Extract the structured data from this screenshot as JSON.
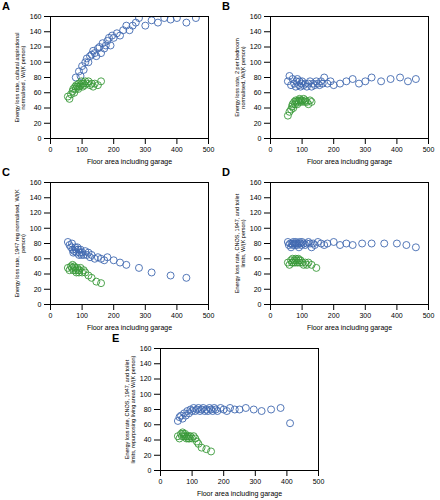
{
  "chart_data": [
    {
      "type": "scatter",
      "title": "A",
      "xlabel": "Floor area including garage",
      "ylabel": "Energy loss rate, cultural aspirational\nnormalised , W/(K person)",
      "xlim": [
        0,
        500
      ],
      "xticks": [
        0,
        100,
        200,
        300,
        400,
        500
      ],
      "ylim": [
        0,
        160
      ],
      "yticks": [
        0,
        20,
        40,
        60,
        80,
        100,
        120,
        140,
        160
      ],
      "grid": false,
      "marker": "circle",
      "series": [
        {
          "color": "#4169b0",
          "x": [
            80,
            90,
            95,
            100,
            105,
            110,
            115,
            120,
            125,
            130,
            135,
            140,
            145,
            150,
            155,
            160,
            165,
            170,
            175,
            180,
            185,
            190,
            195,
            200,
            210,
            220,
            230,
            240,
            250,
            260,
            270,
            280,
            300,
            320,
            340,
            360,
            380,
            400,
            430,
            460
          ],
          "values": [
            80,
            88,
            82,
            95,
            90,
            100,
            105,
            100,
            108,
            110,
            115,
            112,
            108,
            118,
            120,
            112,
            125,
            118,
            122,
            128,
            132,
            122,
            135,
            132,
            138,
            135,
            142,
            148,
            142,
            148,
            152,
            158,
            148,
            155,
            152,
            158,
            156,
            158,
            152,
            158
          ]
        },
        {
          "color": "#3a9a3a",
          "x": [
            55,
            60,
            65,
            70,
            72,
            75,
            78,
            80,
            82,
            85,
            88,
            90,
            92,
            95,
            98,
            100,
            102,
            105,
            108,
            110,
            115,
            120,
            125,
            130,
            135,
            140,
            150,
            160
          ],
          "values": [
            55,
            52,
            58,
            62,
            65,
            60,
            68,
            65,
            70,
            68,
            65,
            72,
            68,
            70,
            75,
            72,
            68,
            72,
            70,
            75,
            72,
            75,
            70,
            72,
            68,
            72,
            70,
            75
          ]
        }
      ]
    },
    {
      "type": "scatter",
      "title": "B",
      "xlabel": "Floor area including garage",
      "ylabel": "Energy loss rate, 2 per bedroom\nnormalised, W/(K person)",
      "xlim": [
        0,
        500
      ],
      "xticks": [
        0,
        100,
        200,
        300,
        400,
        500
      ],
      "ylim": [
        0,
        160
      ],
      "yticks": [
        0,
        20,
        40,
        60,
        80,
        100,
        120,
        140,
        160
      ],
      "grid": false,
      "marker": "circle",
      "series": [
        {
          "color": "#4169b0",
          "x": [
            55,
            60,
            65,
            70,
            75,
            80,
            82,
            85,
            90,
            92,
            95,
            98,
            100,
            105,
            110,
            115,
            120,
            125,
            130,
            135,
            140,
            145,
            150,
            155,
            160,
            165,
            170,
            180,
            190,
            200,
            220,
            240,
            260,
            280,
            300,
            320,
            350,
            380,
            410,
            435,
            460
          ],
          "values": [
            75,
            82,
            70,
            78,
            72,
            68,
            75,
            78,
            70,
            75,
            68,
            72,
            75,
            70,
            72,
            68,
            72,
            75,
            68,
            72,
            70,
            75,
            72,
            70,
            75,
            72,
            80,
            72,
            75,
            70,
            72,
            75,
            78,
            72,
            75,
            80,
            75,
            78,
            80,
            75,
            78
          ]
        },
        {
          "color": "#3a9a3a",
          "x": [
            55,
            60,
            65,
            68,
            70,
            72,
            75,
            78,
            80,
            82,
            85,
            88,
            90,
            92,
            95,
            98,
            100,
            105,
            108,
            110,
            115,
            120,
            125,
            130
          ],
          "values": [
            30,
            35,
            38,
            42,
            45,
            40,
            48,
            45,
            50,
            48,
            45,
            50,
            48,
            52,
            50,
            48,
            50,
            52,
            48,
            50,
            48,
            45,
            50,
            48
          ]
        }
      ]
    },
    {
      "type": "scatter",
      "title": "C",
      "xlabel": "Floor area including garage",
      "ylabel": "Energy loss rate, 1947 reg normalised, W/(K\nperson)",
      "xlim": [
        0,
        500
      ],
      "xticks": [
        0,
        100,
        200,
        300,
        400,
        500
      ],
      "ylim": [
        0,
        160
      ],
      "yticks": [
        0,
        20,
        40,
        60,
        80,
        100,
        120,
        140,
        160
      ],
      "grid": false,
      "marker": "circle",
      "series": [
        {
          "color": "#4169b0",
          "x": [
            55,
            60,
            65,
            68,
            70,
            72,
            75,
            78,
            80,
            82,
            85,
            88,
            90,
            92,
            95,
            98,
            100,
            105,
            110,
            115,
            120,
            125,
            130,
            140,
            150,
            160,
            170,
            180,
            200,
            220,
            240,
            280,
            320,
            380,
            430
          ],
          "values": [
            82,
            78,
            75,
            80,
            72,
            68,
            70,
            75,
            72,
            68,
            75,
            72,
            65,
            68,
            72,
            65,
            68,
            65,
            70,
            65,
            68,
            62,
            65,
            60,
            62,
            60,
            58,
            62,
            58,
            55,
            52,
            48,
            42,
            38,
            35
          ]
        },
        {
          "color": "#3a9a3a",
          "x": [
            55,
            60,
            65,
            68,
            70,
            72,
            75,
            78,
            80,
            82,
            85,
            88,
            90,
            92,
            95,
            100,
            105,
            110,
            120,
            130,
            145,
            160
          ],
          "values": [
            48,
            45,
            50,
            48,
            52,
            45,
            50,
            48,
            45,
            42,
            48,
            45,
            42,
            45,
            48,
            42,
            45,
            42,
            38,
            35,
            30,
            28
          ]
        }
      ]
    },
    {
      "type": "scatter",
      "title": "D",
      "xlabel": "Floor area including garage",
      "ylabel": "Energy loss rate, CNOS, 1947, and toilet\nlimits, W/(K person)",
      "xlim": [
        0,
        500
      ],
      "xticks": [
        0,
        100,
        200,
        300,
        400,
        500
      ],
      "ylim": [
        0,
        160
      ],
      "yticks": [
        0,
        20,
        40,
        60,
        80,
        100,
        120,
        140,
        160
      ],
      "grid": false,
      "marker": "circle",
      "series": [
        {
          "color": "#4169b0",
          "x": [
            55,
            58,
            62,
            65,
            68,
            70,
            72,
            75,
            78,
            80,
            82,
            85,
            88,
            90,
            92,
            95,
            98,
            100,
            105,
            110,
            115,
            120,
            125,
            130,
            135,
            140,
            150,
            160,
            170,
            180,
            200,
            220,
            240,
            260,
            290,
            320,
            360,
            400,
            430,
            460
          ],
          "values": [
            82,
            78,
            80,
            75,
            80,
            78,
            82,
            80,
            78,
            82,
            80,
            78,
            80,
            75,
            82,
            80,
            78,
            82,
            80,
            78,
            80,
            82,
            80,
            75,
            80,
            78,
            82,
            80,
            78,
            80,
            82,
            78,
            80,
            78,
            80,
            80,
            80,
            80,
            78,
            75
          ]
        },
        {
          "color": "#3a9a3a",
          "x": [
            55,
            60,
            65,
            68,
            70,
            72,
            75,
            78,
            80,
            82,
            85,
            88,
            90,
            92,
            95,
            100,
            105,
            110,
            115,
            120,
            130,
            145
          ],
          "values": [
            55,
            52,
            58,
            55,
            60,
            55,
            58,
            55,
            60,
            58,
            55,
            60,
            58,
            55,
            58,
            55,
            52,
            55,
            52,
            55,
            52,
            48
          ]
        }
      ]
    },
    {
      "type": "scatter",
      "title": "E",
      "xlabel": "Floor area including garage",
      "ylabel": "Energy loss rate, CNOS, 1947, and toilet\nlimits, repurposing living areas W/(K person)",
      "xlim": [
        0,
        500
      ],
      "xticks": [
        0,
        100,
        200,
        300,
        400,
        500
      ],
      "ylim": [
        0,
        160
      ],
      "yticks": [
        0,
        20,
        40,
        60,
        80,
        100,
        120,
        140,
        160
      ],
      "grid": false,
      "marker": "circle",
      "series": [
        {
          "color": "#4169b0",
          "x": [
            55,
            60,
            65,
            70,
            75,
            80,
            85,
            90,
            95,
            100,
            105,
            110,
            115,
            120,
            125,
            130,
            135,
            140,
            145,
            150,
            155,
            160,
            165,
            170,
            175,
            180,
            190,
            200,
            210,
            220,
            235,
            250,
            270,
            295,
            320,
            350,
            380,
            410
          ],
          "values": [
            65,
            70,
            72,
            68,
            75,
            72,
            78,
            75,
            80,
            78,
            82,
            78,
            80,
            82,
            78,
            80,
            82,
            78,
            80,
            78,
            82,
            80,
            78,
            82,
            80,
            78,
            82,
            80,
            78,
            82,
            80,
            80,
            82,
            80,
            78,
            80,
            82,
            62
          ]
        },
        {
          "color": "#3a9a3a",
          "x": [
            55,
            60,
            65,
            68,
            70,
            72,
            75,
            78,
            80,
            82,
            85,
            88,
            90,
            92,
            95,
            100,
            105,
            110,
            115,
            120,
            130,
            145,
            160
          ],
          "values": [
            45,
            42,
            48,
            45,
            50,
            48,
            45,
            48,
            45,
            42,
            45,
            42,
            45,
            42,
            45,
            42,
            45,
            42,
            38,
            35,
            30,
            28,
            25
          ]
        }
      ]
    }
  ]
}
